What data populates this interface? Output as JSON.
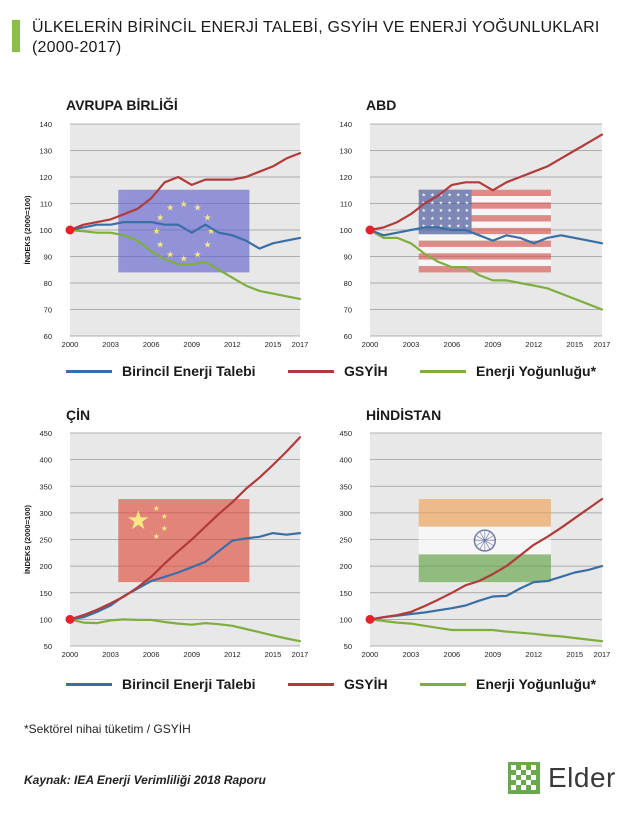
{
  "title": {
    "line1": "ÜLKELERİN BİRİNCİL ENERJİ TALEBİ, GSYİH VE ENERJİ YOĞUNLUKLARI",
    "line2": "(2000-2017)"
  },
  "colors": {
    "energy": "#3a6fa5",
    "gdp": "#b23a3a",
    "intensity": "#7fae3e",
    "plot_bg": "#e8e8e8",
    "accent": "#8dc04b",
    "marker": "#e8202a"
  },
  "legends": [
    {
      "energy": "Birincil Enerji Talebi",
      "gdp": "GSYİH",
      "intensity": "Enerji Yoğunluğu*"
    },
    {
      "energy": "Birincil Enerji Talebi",
      "gdp": "GSYİH",
      "intensity": "Enerji Yoğunluğu*"
    }
  ],
  "footnote": "*Sektörel nihai tüketim / GSYİH",
  "source": "Kaynak: IEA Enerji Verimliliği 2018 Raporu",
  "logo": {
    "text": "Elder"
  },
  "chart_data": [
    {
      "type": "line",
      "title": "AVRUPA BİRLİĞİ",
      "ylabel": "İNDEKS (2000=100)",
      "ylim": [
        60,
        140
      ],
      "yticks": [
        60,
        70,
        80,
        90,
        100,
        110,
        120,
        130,
        140
      ],
      "xticks": [
        2000,
        2003,
        2006,
        2009,
        2012,
        2015,
        2017
      ],
      "xlim": [
        2000,
        2017
      ],
      "flag": "eu",
      "series": [
        {
          "key": "energy",
          "name": "Birincil Enerji Talebi",
          "x": [
            2000,
            2001,
            2002,
            2003,
            2004,
            2005,
            2006,
            2007,
            2008,
            2009,
            2010,
            2011,
            2012,
            2013,
            2014,
            2015,
            2016,
            2017
          ],
          "y": [
            100,
            101,
            102,
            102,
            103,
            103,
            103,
            102,
            102,
            99,
            102,
            99,
            98,
            96,
            93,
            95,
            96,
            97
          ]
        },
        {
          "key": "gdp",
          "name": "GSYİH",
          "x": [
            2000,
            2001,
            2002,
            2003,
            2004,
            2005,
            2006,
            2007,
            2008,
            2009,
            2010,
            2011,
            2012,
            2013,
            2014,
            2015,
            2016,
            2017
          ],
          "y": [
            100,
            102,
            103,
            104,
            106,
            108,
            112,
            118,
            120,
            117,
            119,
            119,
            119,
            120,
            122,
            124,
            127,
            129
          ]
        },
        {
          "key": "intensity",
          "name": "Enerji Yoğunluğu*",
          "x": [
            2000,
            2001,
            2002,
            2003,
            2004,
            2005,
            2006,
            2007,
            2008,
            2009,
            2010,
            2011,
            2012,
            2013,
            2014,
            2015,
            2016,
            2017
          ],
          "y": [
            100,
            99.5,
            99,
            99,
            98,
            96,
            92,
            89,
            87,
            87,
            88,
            85,
            82,
            79,
            77,
            76,
            75,
            74
          ]
        }
      ]
    },
    {
      "type": "line",
      "title": "ABD",
      "ylabel": "",
      "ylim": [
        60,
        140
      ],
      "yticks": [
        60,
        70,
        80,
        90,
        100,
        110,
        120,
        130,
        140
      ],
      "xticks": [
        2000,
        2003,
        2006,
        2009,
        2012,
        2015,
        2017
      ],
      "xlim": [
        2000,
        2017
      ],
      "flag": "us",
      "series": [
        {
          "key": "energy",
          "name": "Birincil Enerji Talebi",
          "x": [
            2000,
            2001,
            2002,
            2003,
            2004,
            2005,
            2006,
            2007,
            2008,
            2009,
            2010,
            2011,
            2012,
            2013,
            2014,
            2015,
            2016,
            2017
          ],
          "y": [
            100,
            98,
            99,
            100,
            101,
            101,
            100,
            100,
            98,
            96,
            98,
            97,
            95,
            97,
            98,
            97,
            96,
            95
          ]
        },
        {
          "key": "gdp",
          "name": "GSYİH",
          "x": [
            2000,
            2001,
            2002,
            2003,
            2004,
            2005,
            2006,
            2007,
            2008,
            2009,
            2010,
            2011,
            2012,
            2013,
            2014,
            2015,
            2016,
            2017
          ],
          "y": [
            100,
            101,
            103,
            106,
            110,
            113,
            117,
            118,
            118,
            115,
            118,
            120,
            122,
            124,
            127,
            130,
            133,
            136
          ]
        },
        {
          "key": "intensity",
          "name": "Enerji Yoğunluğu*",
          "x": [
            2000,
            2001,
            2002,
            2003,
            2004,
            2005,
            2006,
            2007,
            2008,
            2009,
            2010,
            2011,
            2012,
            2013,
            2014,
            2015,
            2016,
            2017
          ],
          "y": [
            100,
            97,
            97,
            95,
            91,
            88,
            86,
            86,
            83,
            81,
            81,
            80,
            79,
            78,
            76,
            74,
            72,
            70
          ]
        }
      ]
    },
    {
      "type": "line",
      "title": "ÇİN",
      "ylabel": "İNDEKS (2000=100)",
      "ylim": [
        50,
        450
      ],
      "yticks": [
        50,
        100,
        150,
        200,
        250,
        300,
        350,
        400,
        450
      ],
      "xticks": [
        2000,
        2003,
        2006,
        2009,
        2012,
        2015,
        2017
      ],
      "xlim": [
        2000,
        2017
      ],
      "flag": "cn",
      "series": [
        {
          "key": "energy",
          "name": "Birincil Enerji Talebi",
          "x": [
            2000,
            2001,
            2002,
            2003,
            2004,
            2005,
            2006,
            2007,
            2008,
            2009,
            2010,
            2011,
            2012,
            2013,
            2014,
            2015,
            2016,
            2017
          ],
          "y": [
            100,
            104,
            114,
            126,
            144,
            158,
            172,
            180,
            188,
            198,
            208,
            228,
            248,
            252,
            255,
            262,
            259,
            262
          ]
        },
        {
          "key": "gdp",
          "name": "GSYİH",
          "x": [
            2000,
            2001,
            2002,
            2003,
            2004,
            2005,
            2006,
            2007,
            2008,
            2009,
            2010,
            2011,
            2012,
            2013,
            2014,
            2015,
            2016,
            2017
          ],
          "y": [
            100,
            108,
            118,
            130,
            143,
            160,
            180,
            205,
            228,
            250,
            274,
            298,
            320,
            345,
            366,
            390,
            415,
            442
          ]
        },
        {
          "key": "intensity",
          "name": "Enerji Yoğunluğu*",
          "x": [
            2000,
            2001,
            2002,
            2003,
            2004,
            2005,
            2006,
            2007,
            2008,
            2009,
            2010,
            2011,
            2012,
            2013,
            2014,
            2015,
            2016,
            2017
          ],
          "y": [
            100,
            94,
            93,
            98,
            100,
            99,
            99,
            95,
            92,
            90,
            93,
            91,
            88,
            82,
            76,
            70,
            64,
            59
          ]
        }
      ]
    },
    {
      "type": "line",
      "title": "HİNDİSTAN",
      "ylabel": "",
      "ylim": [
        50,
        450
      ],
      "yticks": [
        50,
        100,
        150,
        200,
        250,
        300,
        350,
        400,
        450
      ],
      "xticks": [
        2000,
        2003,
        2006,
        2009,
        2012,
        2015,
        2017
      ],
      "xlim": [
        2000,
        2017
      ],
      "flag": "in",
      "series": [
        {
          "key": "energy",
          "name": "Birincil Enerji Talebi",
          "x": [
            2000,
            2001,
            2002,
            2003,
            2004,
            2005,
            2006,
            2007,
            2008,
            2009,
            2010,
            2011,
            2012,
            2013,
            2014,
            2015,
            2016,
            2017
          ],
          "y": [
            100,
            104,
            107,
            110,
            113,
            117,
            121,
            126,
            135,
            143,
            144,
            158,
            170,
            172,
            180,
            188,
            193,
            200
          ]
        },
        {
          "key": "gdp",
          "name": "GSYİH",
          "x": [
            2000,
            2001,
            2002,
            2003,
            2004,
            2005,
            2006,
            2007,
            2008,
            2009,
            2010,
            2011,
            2012,
            2013,
            2014,
            2015,
            2016,
            2017
          ],
          "y": [
            100,
            104,
            108,
            114,
            125,
            137,
            150,
            164,
            172,
            185,
            200,
            220,
            240,
            255,
            272,
            290,
            308,
            326
          ]
        },
        {
          "key": "intensity",
          "name": "Enerji Yoğunluğu*",
          "x": [
            2000,
            2001,
            2002,
            2003,
            2004,
            2005,
            2006,
            2007,
            2008,
            2009,
            2010,
            2011,
            2012,
            2013,
            2014,
            2015,
            2016,
            2017
          ],
          "y": [
            100,
            97,
            94,
            92,
            88,
            84,
            80,
            80,
            80,
            80,
            77,
            75,
            73,
            70,
            68,
            65,
            62,
            59
          ]
        }
      ]
    }
  ]
}
